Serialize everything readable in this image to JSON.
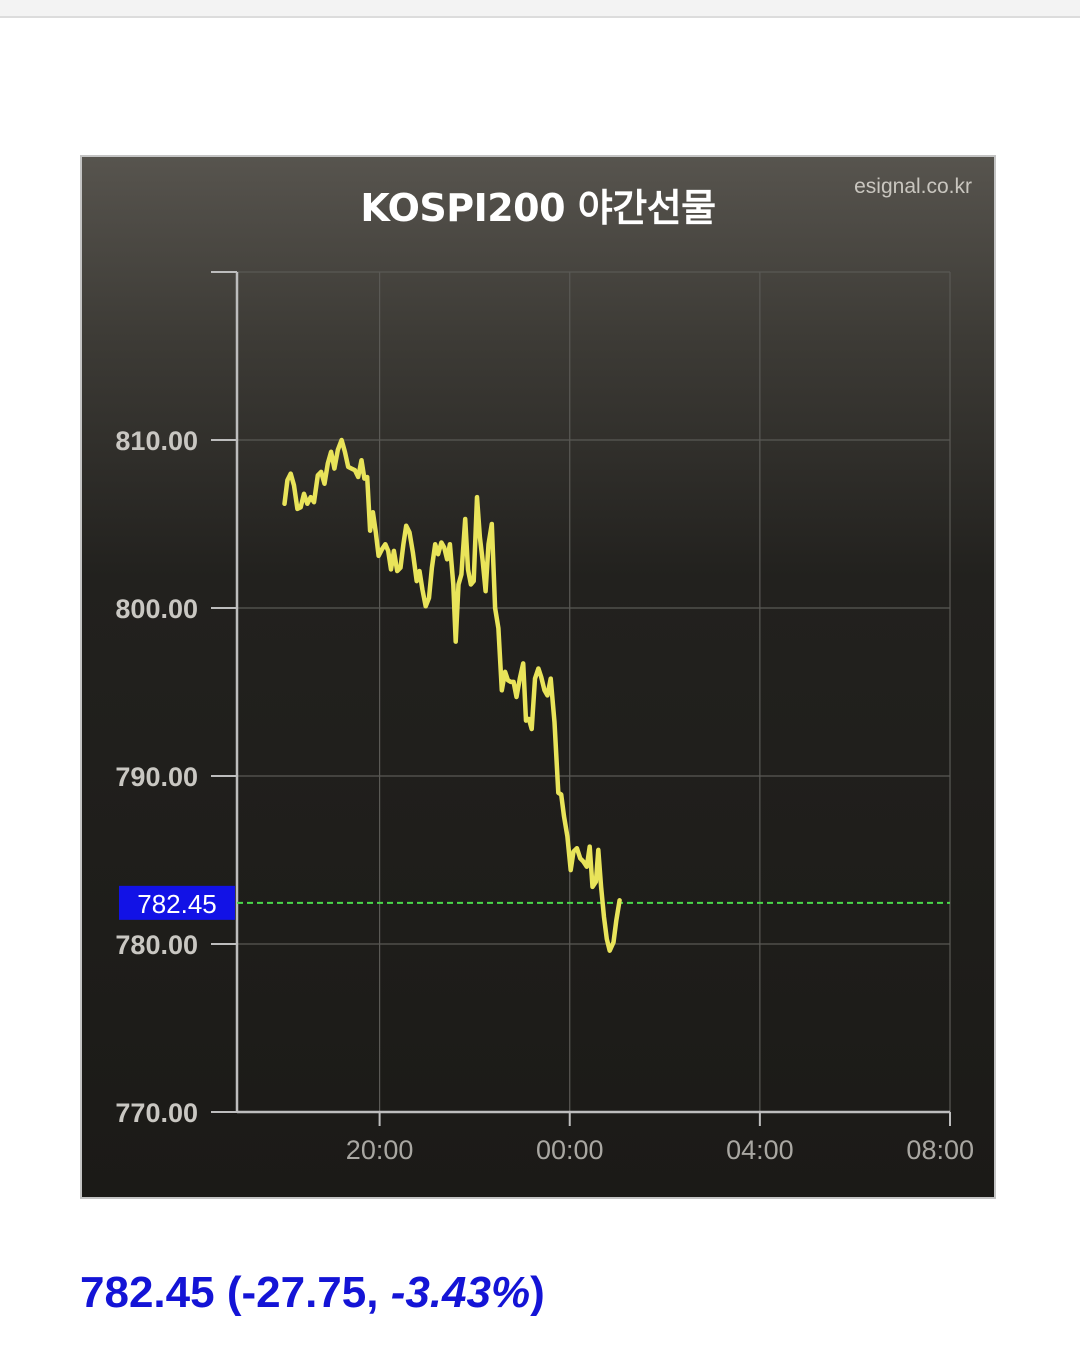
{
  "source": "esignal.co.kr",
  "summary": {
    "price": "782.45",
    "change": "-27.75",
    "change_pct": "-3.43%"
  },
  "colors": {
    "line": "#e9e45a",
    "current_line": "#4ad94a",
    "current_badge": "#1212e6",
    "summary_text": "#1414d6",
    "grid": "#5a5955",
    "axis": "#bdbdbd"
  },
  "chart_data": {
    "type": "line",
    "title": "KOSPI200 야간선물",
    "xlabel": "",
    "ylabel": "",
    "ylim": [
      770,
      820
    ],
    "xlim_hours": [
      17.0,
      32.0
    ],
    "x_ticks": [
      {
        "hour": 20,
        "label": "20:00"
      },
      {
        "hour": 24,
        "label": "00:00"
      },
      {
        "hour": 28,
        "label": "04:00"
      },
      {
        "hour": 32,
        "label": "08:00"
      }
    ],
    "y_ticks": [
      {
        "value": 770,
        "label": "770.00"
      },
      {
        "value": 780,
        "label": "780.00"
      },
      {
        "value": 790,
        "label": "790.00"
      },
      {
        "value": 800,
        "label": "800.00"
      },
      {
        "value": 810,
        "label": "810.00"
      }
    ],
    "grid": true,
    "current_value": 782.45,
    "current_label": "782.45",
    "series": [
      {
        "name": "",
        "points": [
          [
            18.0,
            806.2
          ],
          [
            18.06,
            807.6
          ],
          [
            18.13,
            808.0
          ],
          [
            18.2,
            807.3
          ],
          [
            18.27,
            805.9
          ],
          [
            18.34,
            806.0
          ],
          [
            18.41,
            806.8
          ],
          [
            18.48,
            806.2
          ],
          [
            18.55,
            806.6
          ],
          [
            18.62,
            806.3
          ],
          [
            18.7,
            807.9
          ],
          [
            18.77,
            808.1
          ],
          [
            18.84,
            807.4
          ],
          [
            18.91,
            808.6
          ],
          [
            18.98,
            809.3
          ],
          [
            19.05,
            808.3
          ],
          [
            19.12,
            809.4
          ],
          [
            19.2,
            810.0
          ],
          [
            19.27,
            809.3
          ],
          [
            19.34,
            808.4
          ],
          [
            19.41,
            808.3
          ],
          [
            19.48,
            808.2
          ],
          [
            19.55,
            807.8
          ],
          [
            19.62,
            808.8
          ],
          [
            19.68,
            807.7
          ],
          [
            19.74,
            807.8
          ],
          [
            19.8,
            804.6
          ],
          [
            19.86,
            805.7
          ],
          [
            19.92,
            804.5
          ],
          [
            19.98,
            803.1
          ],
          [
            20.05,
            803.5
          ],
          [
            20.12,
            803.8
          ],
          [
            20.18,
            803.4
          ],
          [
            20.24,
            802.3
          ],
          [
            20.3,
            803.4
          ],
          [
            20.37,
            802.2
          ],
          [
            20.44,
            802.4
          ],
          [
            20.5,
            803.8
          ],
          [
            20.56,
            804.9
          ],
          [
            20.63,
            804.5
          ],
          [
            20.7,
            803.3
          ],
          [
            20.78,
            801.6
          ],
          [
            20.84,
            802.2
          ],
          [
            20.9,
            801.1
          ],
          [
            20.97,
            800.1
          ],
          [
            21.04,
            800.6
          ],
          [
            21.1,
            802.4
          ],
          [
            21.17,
            803.8
          ],
          [
            21.23,
            803.2
          ],
          [
            21.3,
            803.9
          ],
          [
            21.36,
            803.6
          ],
          [
            21.42,
            802.9
          ],
          [
            21.48,
            803.8
          ],
          [
            21.55,
            801.4
          ],
          [
            21.6,
            798.0
          ],
          [
            21.66,
            801.4
          ],
          [
            21.72,
            802.0
          ],
          [
            21.8,
            805.3
          ],
          [
            21.86,
            802.3
          ],
          [
            21.92,
            801.4
          ],
          [
            21.98,
            801.6
          ],
          [
            22.05,
            806.6
          ],
          [
            22.11,
            804.2
          ],
          [
            22.17,
            802.8
          ],
          [
            22.23,
            801.0
          ],
          [
            22.29,
            803.8
          ],
          [
            22.36,
            805.0
          ],
          [
            22.43,
            800.0
          ],
          [
            22.5,
            798.8
          ],
          [
            22.57,
            795.1
          ],
          [
            22.64,
            796.2
          ],
          [
            22.7,
            795.7
          ],
          [
            22.76,
            795.6
          ],
          [
            22.82,
            795.6
          ],
          [
            22.88,
            794.7
          ],
          [
            22.95,
            795.8
          ],
          [
            23.02,
            796.7
          ],
          [
            23.08,
            793.3
          ],
          [
            23.14,
            793.4
          ],
          [
            23.2,
            792.8
          ],
          [
            23.27,
            795.8
          ],
          [
            23.34,
            796.4
          ],
          [
            23.4,
            795.9
          ],
          [
            23.47,
            795.1
          ],
          [
            23.53,
            794.8
          ],
          [
            23.6,
            795.8
          ],
          [
            23.68,
            793.2
          ],
          [
            23.76,
            789.0
          ],
          [
            23.82,
            788.9
          ],
          [
            23.88,
            787.6
          ],
          [
            23.95,
            786.4
          ],
          [
            24.02,
            784.4
          ],
          [
            24.08,
            785.5
          ],
          [
            24.15,
            785.7
          ],
          [
            24.22,
            785.1
          ],
          [
            24.29,
            784.9
          ],
          [
            24.36,
            784.6
          ],
          [
            24.42,
            785.8
          ],
          [
            24.48,
            783.4
          ],
          [
            24.55,
            783.7
          ],
          [
            24.6,
            785.6
          ],
          [
            24.66,
            783.4
          ],
          [
            24.72,
            781.6
          ],
          [
            24.78,
            780.3
          ],
          [
            24.84,
            779.6
          ],
          [
            24.92,
            780.1
          ],
          [
            24.98,
            781.4
          ],
          [
            25.05,
            782.6
          ]
        ]
      }
    ]
  }
}
